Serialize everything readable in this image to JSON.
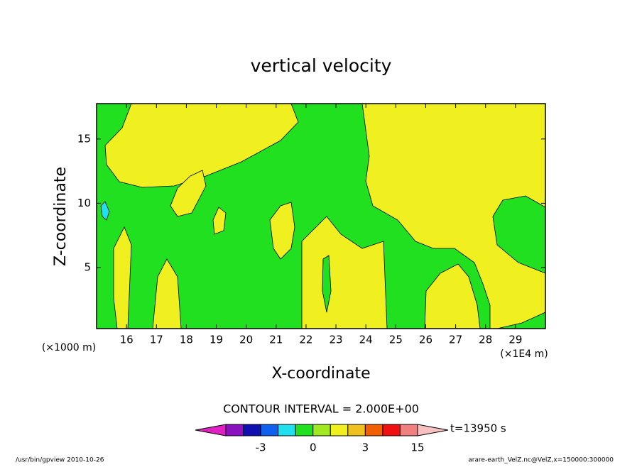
{
  "chart_data": {
    "type": "contour",
    "title": "vertical velocity",
    "x_label": "X-coordinate",
    "y_label": "Z-coordinate",
    "x_unit": "(×1E4 m)",
    "y_unit": "(×1000 m)",
    "xlim": [
      15,
      30
    ],
    "xticks": [
      16,
      17,
      18,
      19,
      20,
      21,
      22,
      23,
      24,
      25,
      26,
      27,
      28,
      29
    ],
    "ylim": [
      0.25,
      17.75
    ],
    "yticks": [
      5,
      10,
      15
    ],
    "contour_note": "CONTOUR INTERVAL = 2.000E+00",
    "colorbar": {
      "levels": [
        -7,
        -5,
        -3,
        -2,
        -1,
        0,
        1,
        2,
        3,
        7,
        11,
        15
      ],
      "labels": [
        -3,
        0,
        3,
        15
      ],
      "colors": [
        "#e020c0",
        "#8a10c0",
        "#1010b0",
        "#1060f0",
        "#20e0f0",
        "#20e020",
        "#a0e820",
        "#f0f020",
        "#f0c020",
        "#f06000",
        "#f01010",
        "#f08080",
        "#f8c0c0"
      ]
    },
    "time_label": "t=13950 s",
    "footer_left": "/usr/bin/gpview  2010-10-26",
    "footer_right": "arare-earth_VelZ.nc@VelZ,x=150000:300000"
  }
}
